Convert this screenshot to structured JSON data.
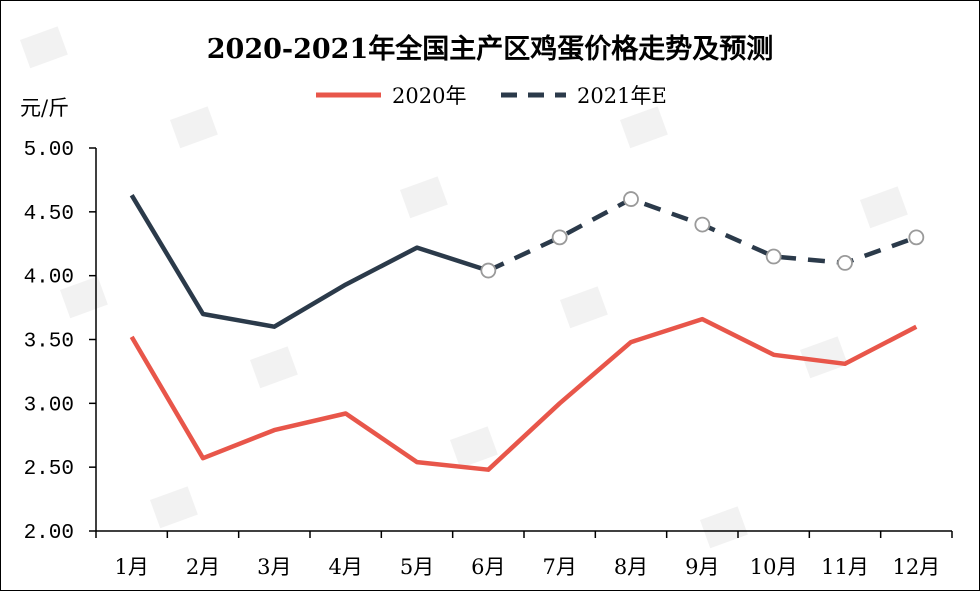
{
  "chart_data": {
    "type": "line",
    "title": "2020-2021年全国主产区鸡蛋价格走势及预测",
    "ylabel": "元/斤",
    "xlabel": "",
    "categories": [
      "1月",
      "2月",
      "3月",
      "4月",
      "5月",
      "6月",
      "7月",
      "8月",
      "9月",
      "10月",
      "11月",
      "12月"
    ],
    "ylim": [
      2.0,
      5.0
    ],
    "yticks": [
      "2.00",
      "2.50",
      "3.00",
      "3.50",
      "4.00",
      "4.50",
      "5.00"
    ],
    "legend_position": "top-center",
    "grid": false,
    "series": [
      {
        "name": "2020年",
        "color": "#E8564A",
        "style": "solid",
        "values": [
          3.52,
          2.57,
          2.79,
          2.92,
          2.54,
          2.48,
          3.0,
          3.48,
          3.66,
          3.38,
          3.31,
          3.6
        ]
      },
      {
        "name": "2021年E",
        "color": "#2B3A4A",
        "style": "solid-then-dashed",
        "solid_through_index": 5,
        "marker_from_index": 5,
        "values": [
          4.63,
          3.7,
          3.6,
          3.93,
          4.22,
          4.04,
          4.3,
          4.6,
          4.4,
          4.15,
          4.1,
          4.3
        ]
      }
    ]
  }
}
